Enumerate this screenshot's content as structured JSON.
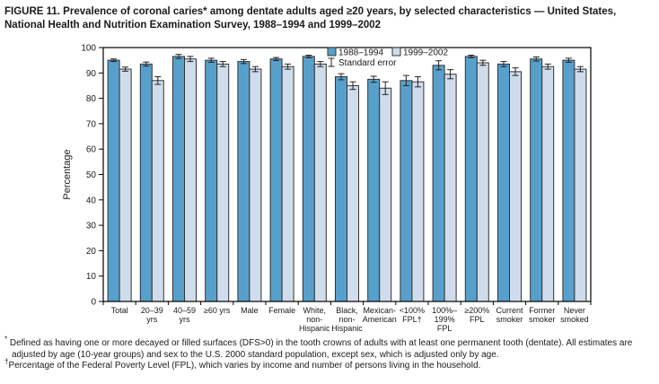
{
  "title": "FIGURE 11. Prevalence of coronal caries* among dentate adults aged ≥20 years, by selected characteristics — United States, National Health and Nutrition Examination Survey, 1988–1994 and 1999–2002",
  "chart_data": {
    "type": "bar",
    "title": "",
    "xlabel": "",
    "ylabel": "Percentage",
    "ylim": [
      0,
      100
    ],
    "yticks": [
      0,
      10,
      20,
      30,
      40,
      50,
      60,
      70,
      80,
      90,
      100
    ],
    "grid": false,
    "legend_position": "top-center-inside",
    "standard_error_label": "Standard error",
    "categories": [
      "Total",
      "20–39\nyrs",
      "40–59\nyrs",
      "≥60 yrs",
      "Male",
      "Female",
      "White,\nnon-\nHispanic",
      "Black,\nnon-\nHispanic",
      "Mexican-\nAmerican",
      "<100%\nFPL†",
      "100%–\n199%\nFPL",
      "≥200%\nFPL",
      "Current\nsmoker",
      "Former\nsmoker",
      "Never\nsmoked"
    ],
    "series": [
      {
        "name": "1988–1994",
        "color": "#58a0cc",
        "values": [
          95.0,
          93.5,
          96.5,
          95.0,
          94.5,
          95.5,
          96.5,
          88.5,
          87.5,
          87.0,
          93.0,
          96.5,
          93.5,
          95.5,
          95.0
        ],
        "standard_errors": [
          0.5,
          0.8,
          0.8,
          0.8,
          0.8,
          0.6,
          0.5,
          1.2,
          1.2,
          2.0,
          1.8,
          0.5,
          1.0,
          0.8,
          0.8
        ]
      },
      {
        "name": "1999–2002",
        "color": "#cfdcec",
        "values": [
          91.5,
          87.0,
          95.5,
          93.5,
          91.5,
          92.5,
          93.5,
          85.0,
          84.0,
          86.5,
          89.5,
          94.0,
          90.5,
          92.5,
          91.5
        ],
        "standard_errors": [
          0.8,
          1.5,
          1.0,
          1.0,
          1.0,
          1.0,
          1.0,
          1.5,
          2.5,
          2.0,
          1.8,
          1.0,
          1.5,
          1.0,
          1.0
        ]
      }
    ]
  },
  "colors": {
    "bar_border": "#333333",
    "axis": "#000000",
    "error_bar": "#222222"
  },
  "footnotes": [
    {
      "marker": "*",
      "text": " Defined as having one or more decayed or filled surfaces (DFS>0) in the tooth crowns of adults with at least one permanent tooth (dentate). All estimates are adjusted by age (10-year groups) and sex to the U.S. 2000 standard population, except sex, which is adjusted only by age."
    },
    {
      "marker": "†",
      "text": "Percentage of the Federal Poverty Level (FPL), which varies by income and number of persons living in the household."
    }
  ]
}
